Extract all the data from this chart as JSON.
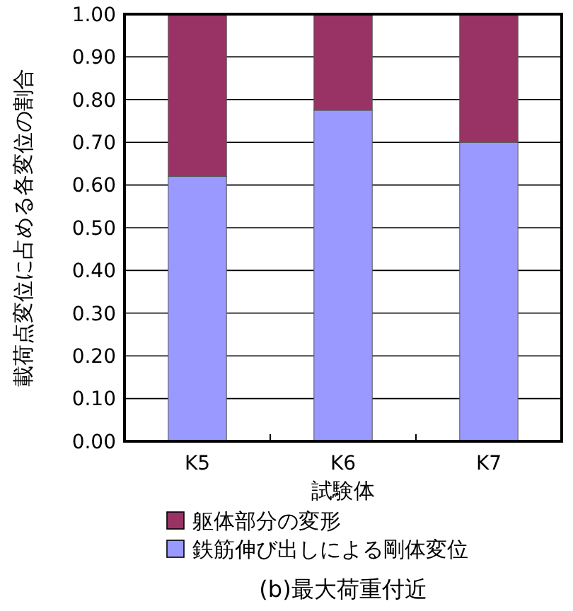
{
  "chart_data": {
    "type": "bar",
    "stacked": true,
    "xlabel": "試験体",
    "ylabel": "載荷点変位に占める各変位の割合",
    "title": "(b)最大荷重付近",
    "categories": [
      "K5",
      "K6",
      "K7"
    ],
    "series": [
      {
        "name": "鉄筋伸び出しによる剛体変位",
        "color": "#9999ff",
        "values": [
          0.62,
          0.775,
          0.7
        ]
      },
      {
        "name": "躯体部分の変形",
        "color": "#993366",
        "values": [
          0.38,
          0.225,
          0.3
        ]
      }
    ],
    "ylim": [
      0,
      1
    ],
    "yticks": [
      {
        "value": 0,
        "label": "0.00"
      },
      {
        "value": 0.1,
        "label": "0.10"
      },
      {
        "value": 0.2,
        "label": "0.20"
      },
      {
        "value": 0.3,
        "label": "0.30"
      },
      {
        "value": 0.4,
        "label": "0.40"
      },
      {
        "value": 0.5,
        "label": "0.50"
      },
      {
        "value": 0.6,
        "label": "0.60"
      },
      {
        "value": 0.7,
        "label": "0.70"
      },
      {
        "value": 0.8,
        "label": "0.80"
      },
      {
        "value": 0.9,
        "label": "0.90"
      },
      {
        "value": 1,
        "label": "1.00"
      }
    ],
    "grid": "y",
    "legend": "bottom"
  }
}
